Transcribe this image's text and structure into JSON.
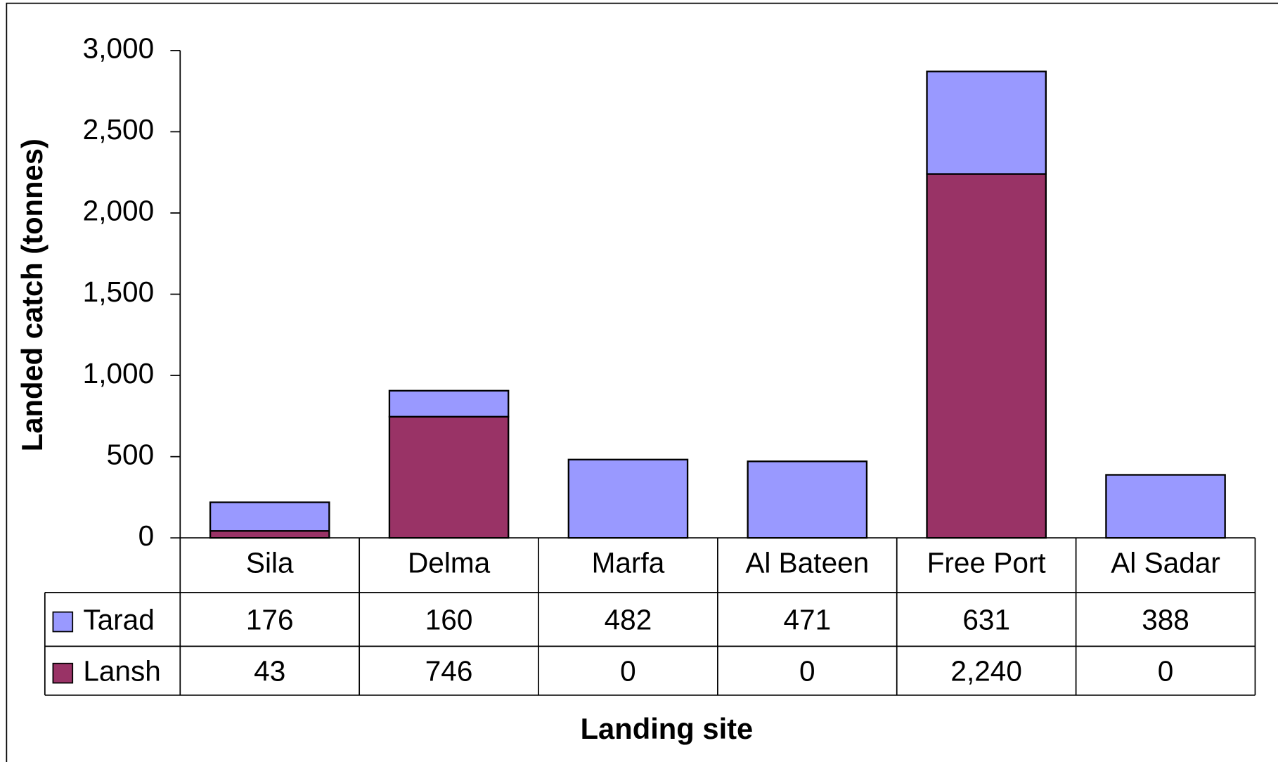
{
  "chart_data": {
    "type": "stacked_bar",
    "xlabel": "Landing site",
    "ylabel": "Landed catch (tonnes)",
    "categories": [
      "Sila",
      "Delma",
      "Marfa",
      "Al Bateen",
      "Free Port",
      "Al Sadar"
    ],
    "series": [
      {
        "name": "Tarad",
        "color": "#9999ff",
        "values": [
          176,
          160,
          482,
          471,
          631,
          388
        ]
      },
      {
        "name": "Lansh",
        "color": "#993366",
        "values": [
          43,
          746,
          0,
          0,
          2240,
          0
        ],
        "value_labels": [
          "43",
          "746",
          "0",
          "0",
          "2,240",
          "0"
        ]
      }
    ],
    "ylim": [
      0,
      3000
    ],
    "yticks": [
      0,
      500,
      {
        "value": 1000,
        "label": "1,000"
      },
      {
        "value": 1500,
        "label": "1,500"
      },
      {
        "value": 2000,
        "label": "2,000"
      },
      {
        "value": 2500,
        "label": "2,500"
      },
      {
        "value": 3000,
        "label": "3,000"
      }
    ],
    "grid": false,
    "data_table": true
  }
}
